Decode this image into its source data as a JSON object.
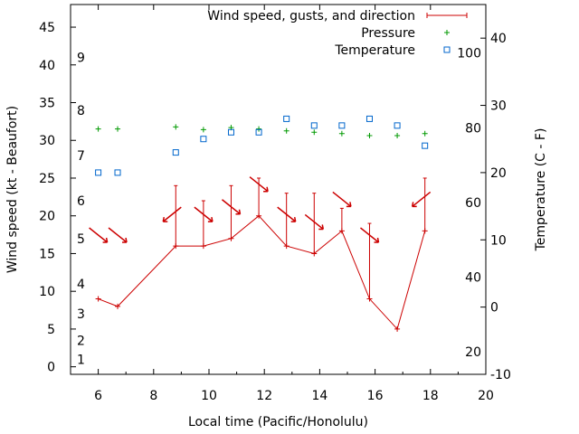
{
  "chart_data": {
    "type": "line",
    "title": "",
    "xlabel": "Local time (Pacific/Honolulu)",
    "ylabel": "Wind speed (kt - Beaufort)",
    "y2label": "Temperature (C - F)",
    "xlim": [
      5,
      20
    ],
    "ylim": [
      -1,
      48
    ],
    "y2lim": [
      -10,
      45
    ],
    "x_ticks": [
      "6",
      "8",
      "10",
      "12",
      "14",
      "16",
      "18",
      "20"
    ],
    "y_ticks": [
      "0",
      "5",
      "10",
      "15",
      "20",
      "25",
      "30",
      "35",
      "40",
      "45"
    ],
    "beaufort_ticks": [
      "1",
      "2",
      "3",
      "4",
      "5",
      "6",
      "7",
      "8",
      "9"
    ],
    "y2_ticks": [
      "-10",
      "0",
      "10",
      "20",
      "30",
      "40"
    ],
    "fahrenheit_ticks": [
      "20",
      "40",
      "60",
      "80",
      "100"
    ],
    "legend": {
      "placement": "top-right",
      "entries": [
        "Wind speed, gusts, and direction",
        "Pressure",
        "Temperature"
      ]
    },
    "colors": {
      "wind": "#cc0000",
      "pressure": "#009900",
      "temperature": "#0066cc"
    },
    "series": [
      {
        "name": "Wind speed, gusts, and direction",
        "x": [
          6,
          6.7,
          8.8,
          9.8,
          10.8,
          11.8,
          12.8,
          13.8,
          14.8,
          15.8,
          16.8,
          17.8
        ],
        "speed": [
          9,
          8,
          16,
          16,
          17,
          20,
          16,
          15,
          18,
          9,
          5,
          18
        ],
        "gust": [
          null,
          null,
          24,
          22,
          24,
          25,
          23,
          23,
          21,
          19,
          null,
          25
        ],
        "direction_deg": [
          45,
          45,
          315,
          15,
          15,
          15,
          15,
          15,
          15,
          15,
          null,
          315
        ]
      },
      {
        "name": "Pressure",
        "x": [
          6,
          6.7,
          8.8,
          9.8,
          10.8,
          11.8,
          12.8,
          13.8,
          14.8,
          15.8,
          16.8,
          17.8
        ],
        "y2": [
          26.5,
          26.5,
          26.8,
          26.4,
          26.7,
          26.5,
          26.2,
          26.0,
          25.8,
          25.5,
          25.5,
          25.8
        ]
      },
      {
        "name": "Temperature",
        "x": [
          6,
          6.7,
          8.8,
          9.8,
          10.8,
          11.8,
          12.8,
          13.8,
          14.8,
          15.8,
          16.8,
          17.8
        ],
        "y2": [
          20,
          20,
          23,
          25,
          26,
          26,
          28,
          27,
          27,
          28,
          27,
          24
        ]
      }
    ]
  }
}
